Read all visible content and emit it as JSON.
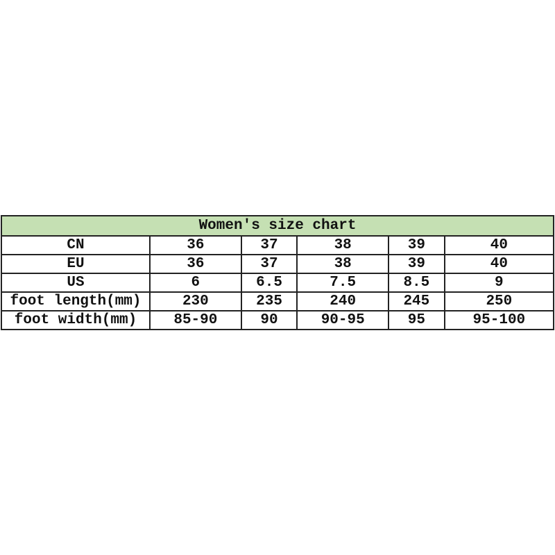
{
  "title": "Women's size chart",
  "header_bg": "#c5e0b3",
  "rows": [
    {
      "label": "CN",
      "values": [
        "36",
        "37",
        "38",
        "39",
        "40"
      ]
    },
    {
      "label": "EU",
      "values": [
        "36",
        "37",
        "38",
        "39",
        "40"
      ]
    },
    {
      "label": "US",
      "values": [
        "6",
        "6.5",
        "7.5",
        "8.5",
        "9"
      ]
    },
    {
      "label": "foot length(mm)",
      "values": [
        "230",
        "235",
        "240",
        "245",
        "250"
      ]
    },
    {
      "label": "foot width(mm)",
      "values": [
        "85-90",
        "90",
        "90-95",
        "95",
        "95-100"
      ]
    }
  ]
}
